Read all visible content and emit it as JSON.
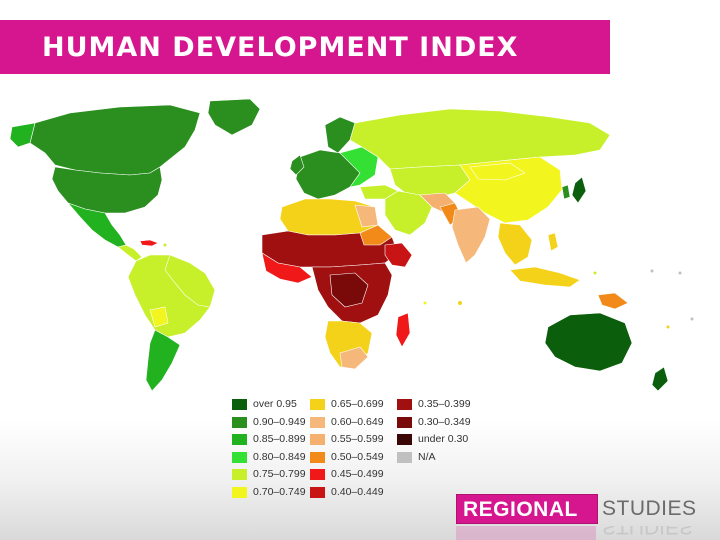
{
  "header": {
    "title": "HUMAN DEVELOPMENT INDEX"
  },
  "legend": {
    "items": [
      {
        "label": "over 0.95",
        "color": "#0b5e0b"
      },
      {
        "label": "0.90–0.949",
        "color": "#2a8f1f"
      },
      {
        "label": "0.85–0.899",
        "color": "#22b21f"
      },
      {
        "label": "0.80–0.849",
        "color": "#33e033"
      },
      {
        "label": "0.75–0.799",
        "color": "#c8f02a"
      },
      {
        "label": "0.70–0.749",
        "color": "#f2f51e"
      },
      {
        "label": "0.65–0.699",
        "color": "#f5d21a"
      },
      {
        "label": "0.60–0.649",
        "color": "#f5b87a"
      },
      {
        "label": "0.55–0.599",
        "color": "#f5b070"
      },
      {
        "label": "0.50–0.549",
        "color": "#f28a1a"
      },
      {
        "label": "0.45–0.499",
        "color": "#f01818"
      },
      {
        "label": "0.40–0.449",
        "color": "#c81414"
      },
      {
        "label": "0.35–0.399",
        "color": "#a01010"
      },
      {
        "label": "0.30–0.349",
        "color": "#7a0a0a"
      },
      {
        "label": "under 0.30",
        "color": "#3a0606"
      },
      {
        "label": "N/A",
        "color": "#c0c0c0"
      }
    ]
  },
  "logo": {
    "bold": "REGIONAL",
    "word": "STUDIES",
    "color": "#d6168f"
  }
}
